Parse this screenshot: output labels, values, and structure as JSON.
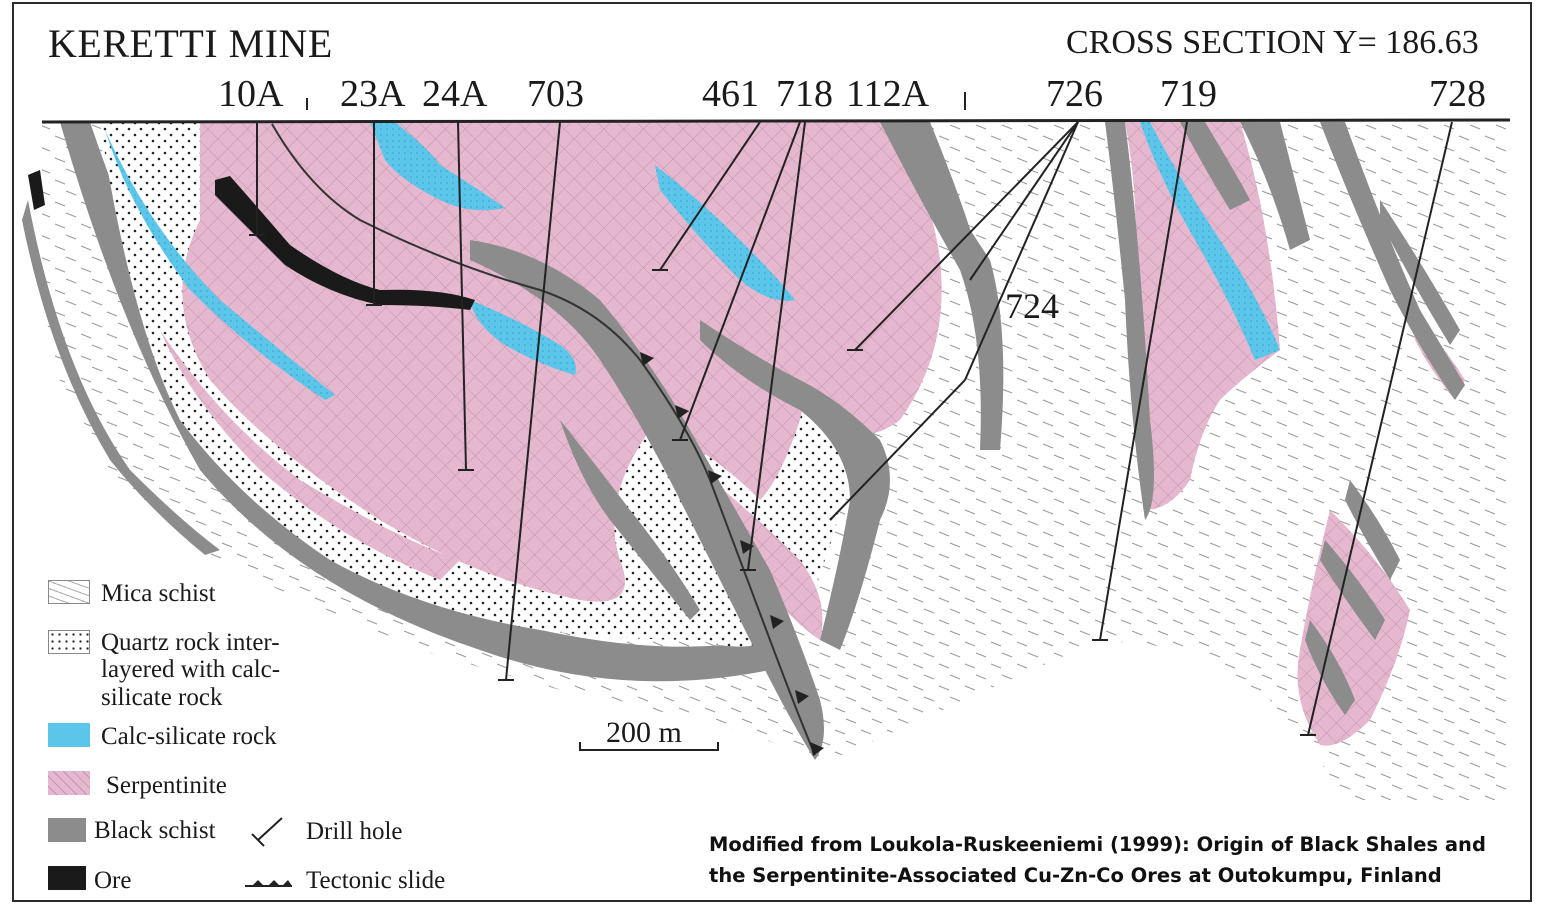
{
  "title": "KERETTI MINE",
  "section_label": "CROSS SECTION  Y= 186.63",
  "drill_holes": [
    "10A",
    "23A",
    "24A",
    "703",
    "461",
    "718",
    "112A",
    "726",
    "719",
    "728",
    "724"
  ],
  "legend": {
    "mica_schist": "Mica schist",
    "quartz_rock_1": "Quartz rock inter-",
    "quartz_rock_2": "layered with calc-",
    "quartz_rock_3": "silicate rock",
    "calc_silicate": "Calc-silicate rock",
    "serpentinite": "Serpentinite",
    "black_schist": "Black schist",
    "ore": "Ore",
    "drill_hole": "Drill hole",
    "tectonic_slide": "Tectonic slide"
  },
  "scale_bar": "200 m",
  "credit_line_1": "Modified from Loukola-Ruskeeniemi (1999): Origin of Black Shales and",
  "credit_line_2": "the Serpentinite-Associated Cu-Zn-Co Ores at Outokumpu, Finland",
  "colors": {
    "serpentinite": "#e6b8cf",
    "calc_silicate": "#5bc6ea",
    "black_schist": "#8c8c8c",
    "ore": "#1a1a1a",
    "quartz_rock": "#ffffff",
    "frame": "#2a2a2a"
  }
}
